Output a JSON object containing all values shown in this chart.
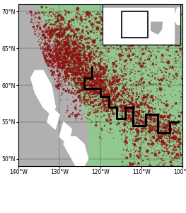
{
  "xlim": [
    -140,
    -100
  ],
  "ylim": [
    49,
    71
  ],
  "xticks": [
    -140,
    -130,
    -120,
    -110,
    -100
  ],
  "yticks": [
    50,
    55,
    60,
    65,
    70
  ],
  "xlabel_labels": [
    "140°W",
    "130°W",
    "120°W",
    "110°W",
    "100°W"
  ],
  "ylabel_labels": [
    "50°N",
    "55°N",
    "60°N",
    "65°N",
    "70°N"
  ],
  "ocean_color": "#b0b0b0",
  "land_color": "#90c890",
  "coast_color": "#ffffff",
  "fire_color": "#8b1010",
  "border_color": "black",
  "border_width": 2.2,
  "figsize": [
    2.63,
    3.0
  ],
  "dpi": 100
}
